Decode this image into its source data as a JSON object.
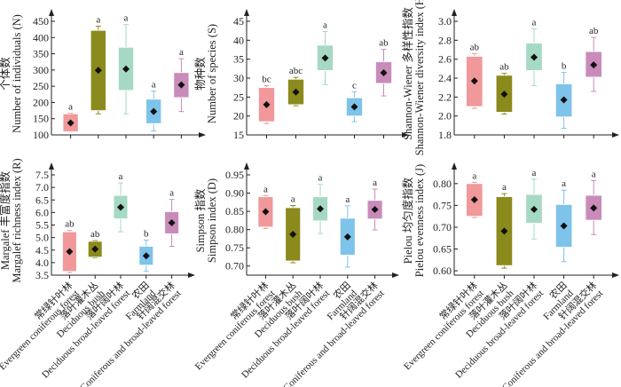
{
  "categories": [
    {
      "zh": "常绿针叶林",
      "en": "Evergreen coniferous forest",
      "color": "#f0989a"
    },
    {
      "zh": "落叶灌木丛",
      "en": "Deciduous bush",
      "color": "#8b8a1c"
    },
    {
      "zh": "落叶阔叶林",
      "en": "Deciduous broad-leaved forest",
      "color": "#a6d9c3"
    },
    {
      "zh": "农田",
      "en": "Farmland",
      "color": "#7ec3ea"
    },
    {
      "zh": "针阔混交林",
      "en": "Coniferous and broad-leaved forest",
      "color": "#c98bba"
    }
  ],
  "chart_data": [
    {
      "type": "box",
      "ylabel_zh": "个体数",
      "ylabel_en": "Number of individuals (N)",
      "ylim": [
        100,
        450
      ],
      "yticks": [
        "100",
        "150",
        "200",
        "250",
        "300",
        "350",
        "400",
        "450"
      ],
      "series": [
        {
          "min": 110,
          "q1": 110,
          "q3": 165,
          "max": 167,
          "mean": 137,
          "sig": "a"
        },
        {
          "min": 165,
          "q1": 175,
          "q3": 422,
          "max": 435,
          "mean": 299,
          "sig": "a"
        },
        {
          "min": 165,
          "q1": 237,
          "q3": 370,
          "max": 440,
          "mean": 303,
          "sig": "a"
        },
        {
          "min": 112,
          "q1": 135,
          "q3": 210,
          "max": 235,
          "mean": 172,
          "sig": "a"
        },
        {
          "min": 172,
          "q1": 215,
          "q3": 292,
          "max": 335,
          "mean": 254,
          "sig": "a"
        }
      ]
    },
    {
      "type": "box",
      "ylabel_zh": "物种数",
      "ylabel_en": "Number of species (S)",
      "ylim": [
        15,
        45
      ],
      "yticks": [
        "15",
        "20",
        "25",
        "30",
        "35",
        "40",
        "45"
      ],
      "series": [
        {
          "min": 18,
          "q1": 18.5,
          "q3": 27.5,
          "max": 28,
          "mean": 23,
          "sig": "bc"
        },
        {
          "min": 22.7,
          "q1": 23,
          "q3": 29.7,
          "max": 30.2,
          "mean": 26.3,
          "sig": "abc"
        },
        {
          "min": 28.3,
          "q1": 32,
          "q3": 38.7,
          "max": 42.3,
          "mean": 35.3,
          "sig": "a"
        },
        {
          "min": 18.5,
          "q1": 20,
          "q3": 24.8,
          "max": 26.4,
          "mean": 22.4,
          "sig": "c"
        },
        {
          "min": 25.3,
          "q1": 28.6,
          "q3": 34.3,
          "max": 37.6,
          "mean": 31.4,
          "sig": "ab"
        }
      ]
    },
    {
      "type": "box",
      "ylabel_zh": "Shannon-Wiener 多样性指数",
      "ylabel_en": "Shannon-Wiener diversity index (H')",
      "ylim": [
        1.8,
        3.0
      ],
      "yticks": [
        "1.8",
        "2.0",
        "2.2",
        "2.4",
        "2.6",
        "2.8",
        "3.0"
      ],
      "series": [
        {
          "min": 2.08,
          "q1": 2.1,
          "q3": 2.63,
          "max": 2.66,
          "mean": 2.37,
          "sig": "ab"
        },
        {
          "min": 2.02,
          "q1": 2.04,
          "q3": 2.43,
          "max": 2.45,
          "mean": 2.23,
          "sig": "ab"
        },
        {
          "min": 2.32,
          "q1": 2.48,
          "q3": 2.77,
          "max": 2.92,
          "mean": 2.62,
          "sig": "a"
        },
        {
          "min": 1.87,
          "q1": 1.99,
          "q3": 2.34,
          "max": 2.46,
          "mean": 2.17,
          "sig": "b"
        },
        {
          "min": 2.26,
          "q1": 2.41,
          "q3": 2.68,
          "max": 2.83,
          "mean": 2.54,
          "sig": "ab"
        }
      ]
    },
    {
      "type": "box",
      "ylabel_zh": "Margalef 丰富度指数",
      "ylabel_en": "Margalef richness index (R)",
      "ylim": [
        3.5,
        7.5
      ],
      "yticks": [
        "3.5",
        "4.0",
        "4.5",
        "5.0",
        "5.5",
        "6.0",
        "6.5",
        "7.0",
        "7.5"
      ],
      "series": [
        {
          "min": 3.6,
          "q1": 3.65,
          "q3": 5.23,
          "max": 5.28,
          "mean": 4.44,
          "sig": "ab"
        },
        {
          "min": 4.2,
          "q1": 4.22,
          "q3": 4.85,
          "max": 4.88,
          "mean": 4.54,
          "sig": "ab"
        },
        {
          "min": 5.23,
          "q1": 5.75,
          "q3": 6.68,
          "max": 7.18,
          "mean": 6.21,
          "sig": "a"
        },
        {
          "min": 3.65,
          "q1": 3.9,
          "q3": 4.65,
          "max": 4.9,
          "mean": 4.27,
          "sig": "b"
        },
        {
          "min": 4.65,
          "q1": 5.15,
          "q3": 6.03,
          "max": 6.52,
          "mean": 5.59,
          "sig": "a"
        }
      ]
    },
    {
      "type": "box",
      "ylabel_zh": "Simpson 指数",
      "ylabel_en": "Simpson index (D)",
      "ylim": [
        0.675,
        0.95
      ],
      "yticks": [
        "0.70",
        "0.75",
        "0.80",
        "0.85",
        "0.90",
        "0.95"
      ],
      "series": [
        {
          "min": 0.803,
          "q1": 0.807,
          "q3": 0.89,
          "max": 0.893,
          "mean": 0.849,
          "sig": "a"
        },
        {
          "min": 0.709,
          "q1": 0.714,
          "q3": 0.86,
          "max": 0.866,
          "mean": 0.787,
          "sig": "a"
        },
        {
          "min": 0.789,
          "q1": 0.824,
          "q3": 0.89,
          "max": 0.924,
          "mean": 0.857,
          "sig": "a"
        },
        {
          "min": 0.697,
          "q1": 0.73,
          "q3": 0.831,
          "max": 0.865,
          "mean": 0.78,
          "sig": "a"
        },
        {
          "min": 0.799,
          "q1": 0.829,
          "q3": 0.88,
          "max": 0.911,
          "mean": 0.855,
          "sig": "a"
        }
      ]
    },
    {
      "type": "box",
      "ylabel_zh": "Pielou 均匀度指数",
      "ylabel_en": "Pielou evenness index (J)",
      "ylim": [
        0.59,
        0.82
      ],
      "yticks": [
        "0.60",
        "0.65",
        "0.70",
        "0.75",
        "0.80"
      ],
      "series": [
        {
          "min": 0.722,
          "q1": 0.725,
          "q3": 0.8,
          "max": 0.803,
          "mean": 0.763,
          "sig": "a"
        },
        {
          "min": 0.606,
          "q1": 0.612,
          "q3": 0.77,
          "max": 0.777,
          "mean": 0.691,
          "sig": "a"
        },
        {
          "min": 0.673,
          "q1": 0.709,
          "q3": 0.775,
          "max": 0.81,
          "mean": 0.741,
          "sig": "a"
        },
        {
          "min": 0.621,
          "q1": 0.654,
          "q3": 0.752,
          "max": 0.785,
          "mean": 0.703,
          "sig": "a"
        },
        {
          "min": 0.683,
          "q1": 0.716,
          "q3": 0.773,
          "max": 0.807,
          "mean": 0.744,
          "sig": "a"
        }
      ]
    }
  ]
}
